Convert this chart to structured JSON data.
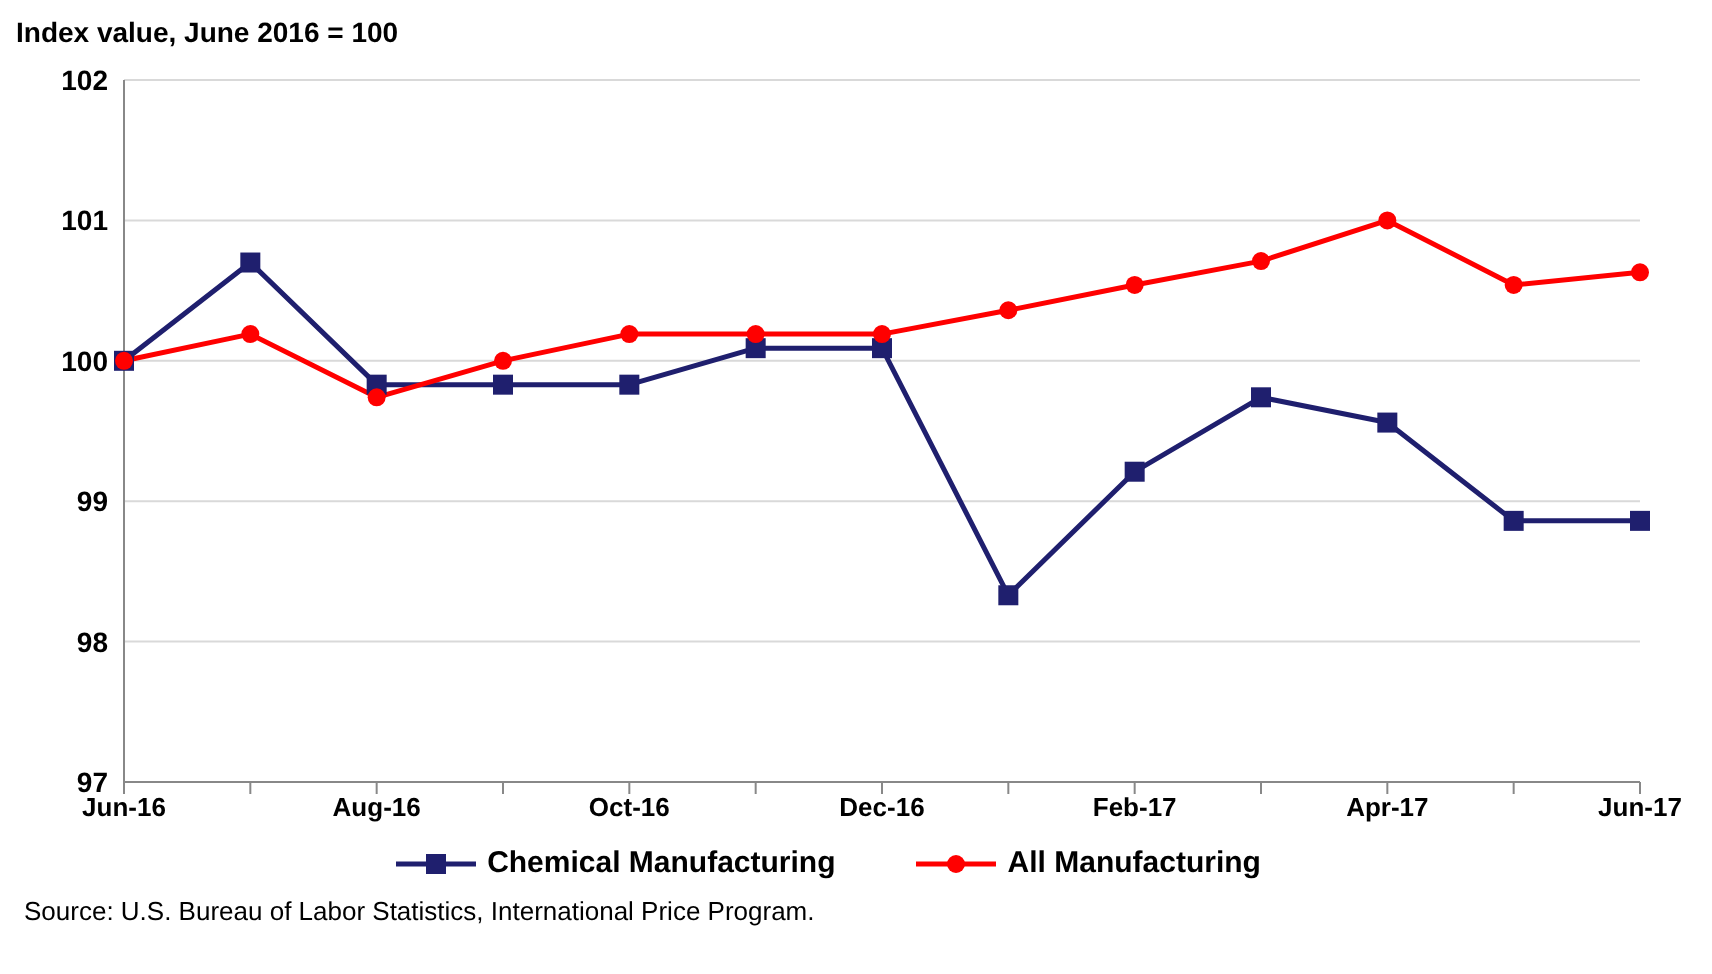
{
  "chart_data": {
    "type": "line",
    "ylabel": "Index value, June 2016 = 100",
    "categories": [
      "Jun-16",
      null,
      "Aug-16",
      null,
      "Oct-16",
      null,
      "Dec-16",
      null,
      "Feb-17",
      null,
      "Apr-17",
      null,
      "Jun-17"
    ],
    "series": [
      {
        "name": "Chemical Manufacturing",
        "color": "#1f1f6e",
        "marker": "square",
        "values": [
          100,
          100.7,
          99.83,
          99.83,
          99.83,
          100.09,
          100.09,
          98.33,
          99.21,
          99.74,
          99.56,
          98.86,
          98.86
        ]
      },
      {
        "name": "All Manufacturing",
        "color": "#ff0000",
        "marker": "circle",
        "values": [
          100,
          100.19,
          99.74,
          100,
          100.19,
          100.19,
          100.19,
          100.36,
          100.54,
          100.71,
          101,
          100.54,
          100.63
        ]
      }
    ],
    "ylim": [
      97,
      102
    ],
    "yticks": [
      97,
      98,
      99,
      100,
      101,
      102
    ],
    "grid": "y",
    "legend": "bottom",
    "annotations": [
      "Source: U.S. Bureau of Labor Statistics, International Price Program."
    ]
  }
}
